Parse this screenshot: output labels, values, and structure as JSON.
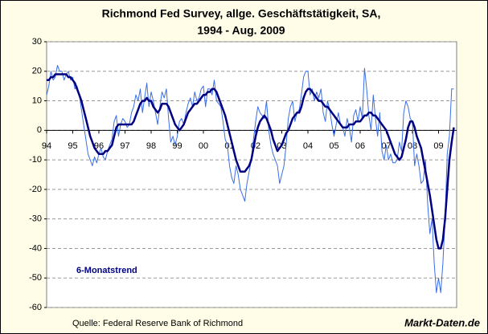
{
  "chart_data": {
    "type": "line",
    "title": "Richmond Fed Survey, allge. Geschäftstätigkeit, SA,",
    "subtitle": "1994 - Aug. 2009",
    "annotations": [
      "Quelle: Federal Reserve Bank of Richmond",
      "Markt-Daten.de"
    ],
    "categories": [
      "94",
      null,
      null,
      null,
      null,
      null,
      null,
      null,
      null,
      null,
      null,
      null,
      "95",
      null,
      null,
      null,
      null,
      null,
      null,
      null,
      null,
      null,
      null,
      null,
      "96",
      null,
      null,
      null,
      null,
      null,
      null,
      null,
      null,
      null,
      null,
      null,
      "97",
      null,
      null,
      null,
      null,
      null,
      null,
      null,
      null,
      null,
      null,
      null,
      "98",
      null,
      null,
      null,
      null,
      null,
      null,
      null,
      null,
      null,
      null,
      null,
      "99",
      null,
      null,
      null,
      null,
      null,
      null,
      null,
      null,
      null,
      null,
      null,
      "00",
      null,
      null,
      null,
      null,
      null,
      null,
      null,
      null,
      null,
      null,
      null,
      "01",
      null,
      null,
      null,
      null,
      null,
      null,
      null,
      null,
      null,
      null,
      null,
      "02",
      null,
      null,
      null,
      null,
      null,
      null,
      null,
      null,
      null,
      null,
      null,
      "03",
      null,
      null,
      null,
      null,
      null,
      null,
      null,
      null,
      null,
      null,
      null,
      "04",
      null,
      null,
      null,
      null,
      null,
      null,
      null,
      null,
      null,
      null,
      null,
      "05",
      null,
      null,
      null,
      null,
      null,
      null,
      null,
      null,
      null,
      null,
      null,
      "06",
      null,
      null,
      null,
      null,
      null,
      null,
      null,
      null,
      null,
      null,
      null,
      "07",
      null,
      null,
      null,
      null,
      null,
      null,
      null,
      null,
      null,
      null,
      null,
      "08",
      null,
      null,
      null,
      null,
      null,
      null,
      null,
      null,
      null,
      null,
      null,
      "09",
      null,
      null,
      null,
      null,
      null,
      null,
      null
    ],
    "series": [
      {
        "color": "#3a6ee8",
        "values": [
          12,
          15,
          20,
          17,
          18,
          22,
          20,
          20,
          17,
          19,
          20,
          17,
          18,
          14,
          15,
          12,
          7,
          2,
          -3,
          -8,
          -10,
          -12,
          -9,
          -11,
          -8,
          -6,
          -9,
          -10,
          -7,
          -5,
          -3,
          3,
          5,
          -2,
          2,
          4,
          3,
          1,
          2,
          6,
          8,
          12,
          10,
          14,
          6,
          11,
          16,
          8,
          13,
          10,
          6,
          2,
          8,
          13,
          11,
          14,
          4,
          -4,
          -2,
          -5,
          -2,
          3,
          4,
          2,
          6,
          9,
          11,
          8,
          13,
          10,
          11,
          14,
          15,
          8,
          14,
          14,
          12,
          17,
          10,
          9,
          8,
          3,
          -3,
          -5,
          -12,
          -16,
          -18,
          -12,
          -15,
          -20,
          -22,
          -24,
          -18,
          -14,
          -10,
          -3,
          3,
          8,
          6,
          5,
          4,
          10,
          0,
          -5,
          -8,
          -10,
          -12,
          -18,
          -15,
          -12,
          -5,
          4,
          8,
          10,
          3,
          6,
          7,
          12,
          18,
          20,
          20,
          12,
          14,
          10,
          13,
          11,
          14,
          6,
          3,
          10,
          7,
          2,
          -2,
          2,
          6,
          2,
          1,
          -2,
          4,
          1,
          -4,
          5,
          7,
          3,
          8,
          4,
          21,
          14,
          5,
          0,
          12,
          4,
          -2,
          6,
          -7,
          -10,
          -5,
          -10,
          -8,
          -11,
          -11,
          -10,
          -4,
          -7,
          6,
          10,
          8,
          4,
          3,
          -12,
          -8,
          -12,
          -18,
          -17,
          -10,
          -25,
          -35,
          -30,
          -45,
          -55,
          -50,
          -55,
          -45,
          -30,
          -8,
          -2,
          14,
          14
        ]
      },
      {
        "name": "6-Monatstrend",
        "color": "#000080",
        "values": [
          17,
          17,
          18,
          18,
          19,
          19,
          19,
          19,
          19,
          19,
          18,
          18,
          17,
          16,
          14,
          12,
          10,
          7,
          4,
          1,
          -2,
          -4,
          -6,
          -7,
          -8,
          -8,
          -8,
          -7,
          -7,
          -6,
          -5,
          -2,
          1,
          2,
          2,
          2,
          2,
          2,
          2,
          2,
          3,
          5,
          7,
          9,
          10,
          10,
          11,
          10,
          10,
          8,
          7,
          6,
          7,
          9,
          9,
          9,
          8,
          6,
          4,
          2,
          1,
          0,
          1,
          2,
          4,
          6,
          7,
          8,
          9,
          9,
          10,
          11,
          12,
          12,
          13,
          13,
          14,
          14,
          13,
          11,
          9,
          7,
          5,
          2,
          -1,
          -4,
          -7,
          -10,
          -12,
          -14,
          -14,
          -14,
          -13,
          -12,
          -10,
          -6,
          -2,
          1,
          3,
          4,
          5,
          4,
          2,
          0,
          -3,
          -5,
          -7,
          -6,
          -5,
          -3,
          -1,
          0,
          2,
          4,
          5,
          6,
          6,
          8,
          11,
          13,
          14,
          14,
          13,
          12,
          11,
          10,
          10,
          9,
          8,
          8,
          7,
          6,
          5,
          4,
          3,
          2,
          1,
          1,
          1,
          2,
          2,
          2,
          3,
          3,
          3,
          4,
          5,
          5,
          6,
          6,
          5,
          5,
          4,
          3,
          2,
          1,
          0,
          -2,
          -4,
          -6,
          -8,
          -9,
          -10,
          -9,
          -6,
          -3,
          1,
          3,
          3,
          1,
          -2,
          -4,
          -6,
          -10,
          -14,
          -18,
          -22,
          -27,
          -32,
          -37,
          -40,
          -40,
          -37,
          -30,
          -20,
          -10,
          -4,
          1
        ]
      }
    ],
    "ylim": [
      -60,
      30
    ],
    "yticks": [
      30,
      20,
      10,
      0,
      -10,
      -20,
      -30,
      -40,
      -50,
      -60
    ],
    "grid": true
  }
}
